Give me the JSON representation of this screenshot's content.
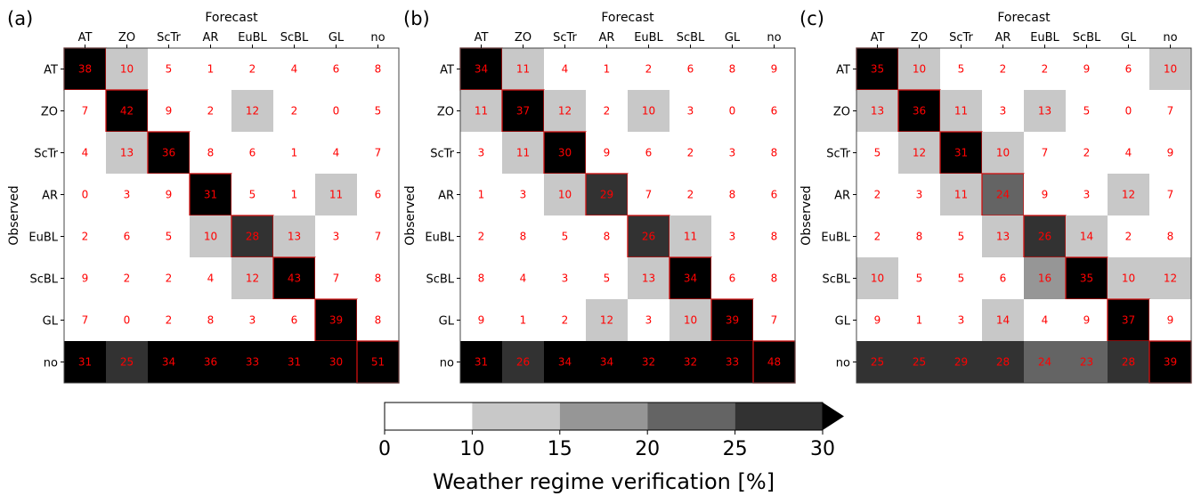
{
  "chart_data": [
    {
      "type": "heatmap",
      "panel_label": "(a)",
      "xlabel": "Forecast",
      "ylabel": "Observed",
      "x_categories": [
        "AT",
        "ZO",
        "ScTr",
        "AR",
        "EuBL",
        "ScBL",
        "GL",
        "no"
      ],
      "y_categories": [
        "AT",
        "ZO",
        "ScTr",
        "AR",
        "EuBL",
        "ScBL",
        "GL",
        "no"
      ],
      "values": [
        [
          38,
          10,
          5,
          1,
          2,
          4,
          6,
          8
        ],
        [
          7,
          42,
          9,
          2,
          12,
          2,
          0,
          5
        ],
        [
          4,
          13,
          36,
          8,
          6,
          1,
          4,
          7
        ],
        [
          0,
          3,
          9,
          31,
          5,
          1,
          11,
          6
        ],
        [
          2,
          6,
          5,
          10,
          28,
          13,
          3,
          7
        ],
        [
          9,
          2,
          2,
          4,
          12,
          43,
          7,
          8
        ],
        [
          7,
          0,
          2,
          8,
          3,
          6,
          39,
          8
        ],
        [
          31,
          25,
          34,
          36,
          33,
          31,
          30,
          51
        ]
      ]
    },
    {
      "type": "heatmap",
      "panel_label": "(b)",
      "xlabel": "Forecast",
      "ylabel": "Observed",
      "x_categories": [
        "AT",
        "ZO",
        "ScTr",
        "AR",
        "EuBL",
        "ScBL",
        "GL",
        "no"
      ],
      "y_categories": [
        "AT",
        "ZO",
        "ScTr",
        "AR",
        "EuBL",
        "ScBL",
        "GL",
        "no"
      ],
      "values": [
        [
          34,
          11,
          4,
          1,
          2,
          6,
          8,
          9
        ],
        [
          11,
          37,
          12,
          2,
          10,
          3,
          0,
          6
        ],
        [
          3,
          11,
          30,
          9,
          6,
          2,
          3,
          8
        ],
        [
          1,
          3,
          10,
          29,
          7,
          2,
          8,
          6
        ],
        [
          2,
          8,
          5,
          8,
          26,
          11,
          3,
          8
        ],
        [
          8,
          4,
          3,
          5,
          13,
          34,
          6,
          8
        ],
        [
          9,
          1,
          2,
          12,
          3,
          10,
          39,
          7
        ],
        [
          31,
          26,
          34,
          34,
          32,
          32,
          33,
          48
        ]
      ]
    },
    {
      "type": "heatmap",
      "panel_label": "(c)",
      "xlabel": "Forecast",
      "ylabel": "Observed",
      "x_categories": [
        "AT",
        "ZO",
        "ScTr",
        "AR",
        "EuBL",
        "ScBL",
        "GL",
        "no"
      ],
      "y_categories": [
        "AT",
        "ZO",
        "ScTr",
        "AR",
        "EuBL",
        "ScBL",
        "GL",
        "no"
      ],
      "values": [
        [
          35,
          10,
          5,
          2,
          2,
          9,
          6,
          10
        ],
        [
          13,
          36,
          11,
          3,
          13,
          5,
          0,
          7
        ],
        [
          5,
          12,
          31,
          10,
          7,
          2,
          4,
          9
        ],
        [
          2,
          3,
          11,
          24,
          9,
          3,
          12,
          7
        ],
        [
          2,
          8,
          5,
          13,
          26,
          14,
          2,
          8
        ],
        [
          10,
          5,
          5,
          6,
          16,
          35,
          10,
          12
        ],
        [
          9,
          1,
          3,
          14,
          4,
          9,
          37,
          9
        ],
        [
          25,
          25,
          29,
          28,
          24,
          23,
          28,
          39
        ]
      ]
    }
  ],
  "colorbar": {
    "label": "Weather regime verification [%]",
    "boundaries": [
      0,
      10,
      15,
      20,
      25,
      30
    ],
    "tick_labels": [
      "0",
      "10",
      "15",
      "20",
      "25",
      "30"
    ],
    "colors": [
      "#ffffff",
      "#c8c8c8",
      "#969696",
      "#646464",
      "#323232"
    ],
    "over_color": "#000000",
    "extend": "max"
  },
  "styles": {
    "cell_text_color": "#ff0000",
    "diagonal_outline_color": "#d01010"
  }
}
